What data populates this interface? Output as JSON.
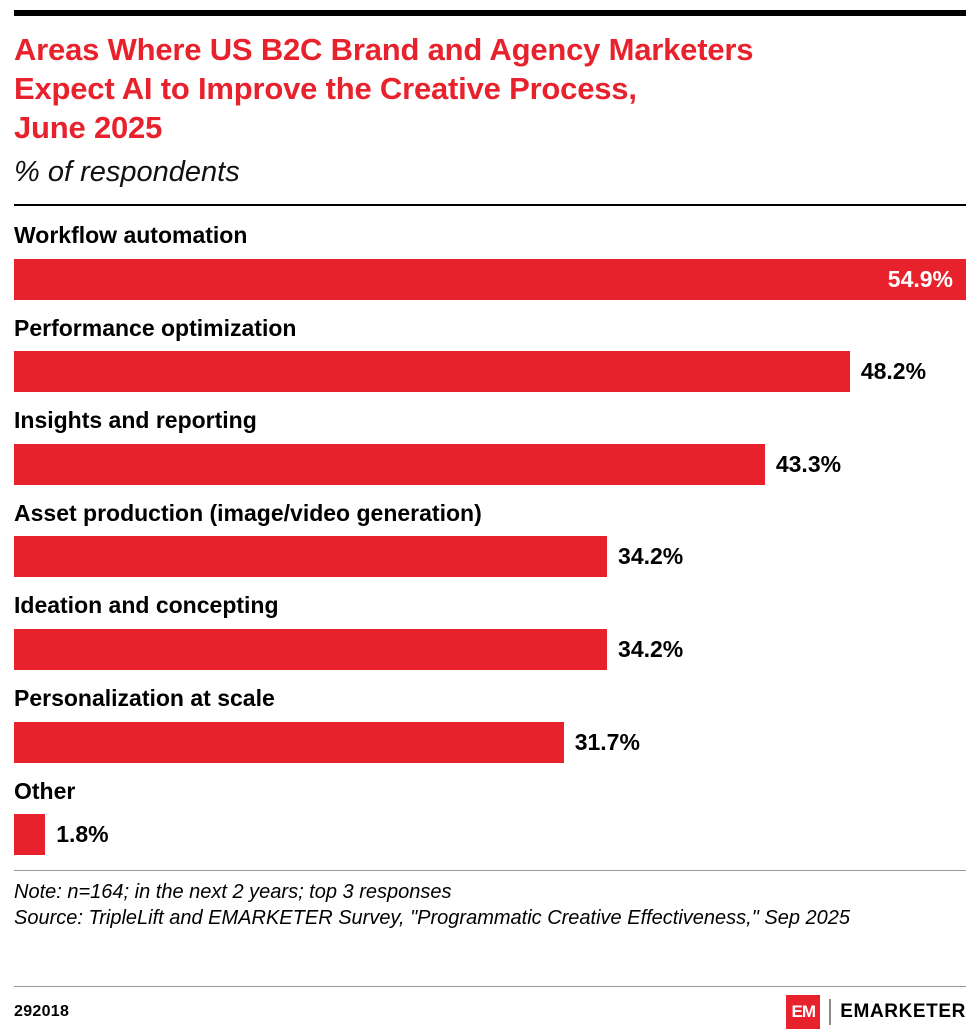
{
  "meta": {
    "accent_red": "#e8222d",
    "text_color": "#000000",
    "background": "#ffffff"
  },
  "header": {
    "title_lines": [
      "Areas Where US B2C Brand and Agency Marketers",
      "Expect AI to Improve the Creative Process,",
      "June 2025"
    ],
    "subtitle": "% of respondents"
  },
  "chart_data": {
    "type": "bar",
    "orientation": "horizontal",
    "title": "Areas Where US B2C Brand and Agency Marketers Expect AI to Improve the Creative Process, June 2025",
    "subtitle": "% of respondents",
    "categories": [
      "Workflow automation",
      "Performance optimization",
      "Insights and reporting",
      "Asset production (image/video generation)",
      "Ideation and concepting",
      "Personalization at scale",
      "Other"
    ],
    "values": [
      54.9,
      48.2,
      43.3,
      34.2,
      34.2,
      31.7,
      1.8
    ],
    "value_labels": [
      "54.9%",
      "48.2%",
      "43.3%",
      "34.2%",
      "34.2%",
      "31.7%",
      "1.8%"
    ],
    "value_label_inside": [
      true,
      false,
      false,
      false,
      false,
      false,
      false
    ],
    "xlim": [
      0,
      54.9
    ],
    "bar_color": "#e8222d",
    "grid": false,
    "legend": false
  },
  "footnotes": {
    "note": "Note: n=164; in the next 2 years; top 3 responses",
    "source": "Source: TripleLift and EMARKETER Survey, \"Programmatic Creative Effectiveness,\" Sep 2025"
  },
  "footer": {
    "chart_id": "292018",
    "logo_mark": "EM",
    "brand": "EMARKETER"
  }
}
